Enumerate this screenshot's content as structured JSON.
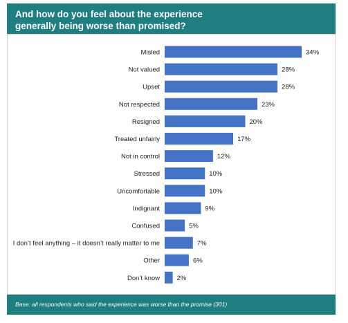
{
  "title_line1": "And how do you feel about the experience",
  "title_line2": "generally being worse than promised?",
  "base_note": "Base: all respondents who said the experience was worse than the promise (301)",
  "colors": {
    "header": "#1f7e82",
    "bar": "#4472c4"
  },
  "chart_data": {
    "type": "bar",
    "orientation": "horizontal",
    "categories": [
      "Misled",
      "Not valued",
      "Upset",
      "Not respected",
      "Resigned",
      "Treated unfairly",
      "Not in control",
      "Stressed",
      "Uncomfortable",
      "Indignant",
      "Confused",
      "I don’t feel anything – it doesn’t really matter to me",
      "Other",
      "Don’t know"
    ],
    "values": [
      34,
      28,
      28,
      23,
      20,
      17,
      12,
      10,
      10,
      9,
      5,
      7,
      6,
      2
    ],
    "value_labels": [
      "34%",
      "28%",
      "28%",
      "23%",
      "20%",
      "17%",
      "12%",
      "10%",
      "10%",
      "9%",
      "5%",
      "7%",
      "6%",
      "2%"
    ],
    "unit": "%",
    "title": "And how do you feel about the experience generally being worse than promised?",
    "xlim": [
      0,
      34
    ]
  }
}
